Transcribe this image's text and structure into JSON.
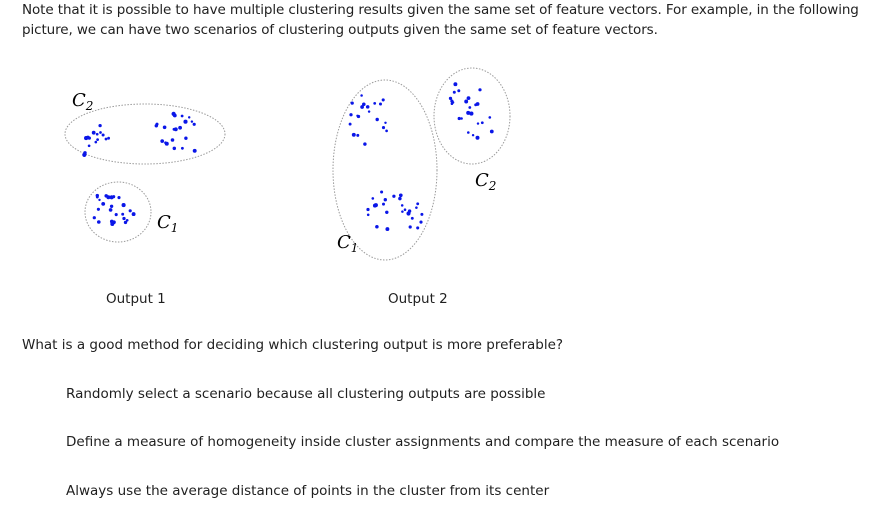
{
  "intro_text": "Note that it is possible to have multiple clustering results given the same set of feature vectors. For example, in the following picture, we can have two scenarios of clustering outputs given the same set of feature vectors.",
  "figure": {
    "output1": {
      "caption": "Output 1",
      "cluster_labels": [
        "C",
        "C"
      ],
      "cluster_subscripts": [
        "2",
        "1"
      ]
    },
    "output2": {
      "caption": "Output 2",
      "cluster_labels": [
        "C",
        "C"
      ],
      "cluster_subscripts": [
        "1",
        "2"
      ]
    },
    "point_color": "#0a16e8",
    "ellipse_color": "#9a9a9a"
  },
  "question": "What is a good method for deciding which clustering output is more preferable?",
  "options": [
    "Randomly select a scenario because all clustering outputs are possible",
    "Define a measure of homogeneity inside cluster assignments and compare the measure of each scenario",
    "Always use the average distance of points in the cluster from its center"
  ]
}
